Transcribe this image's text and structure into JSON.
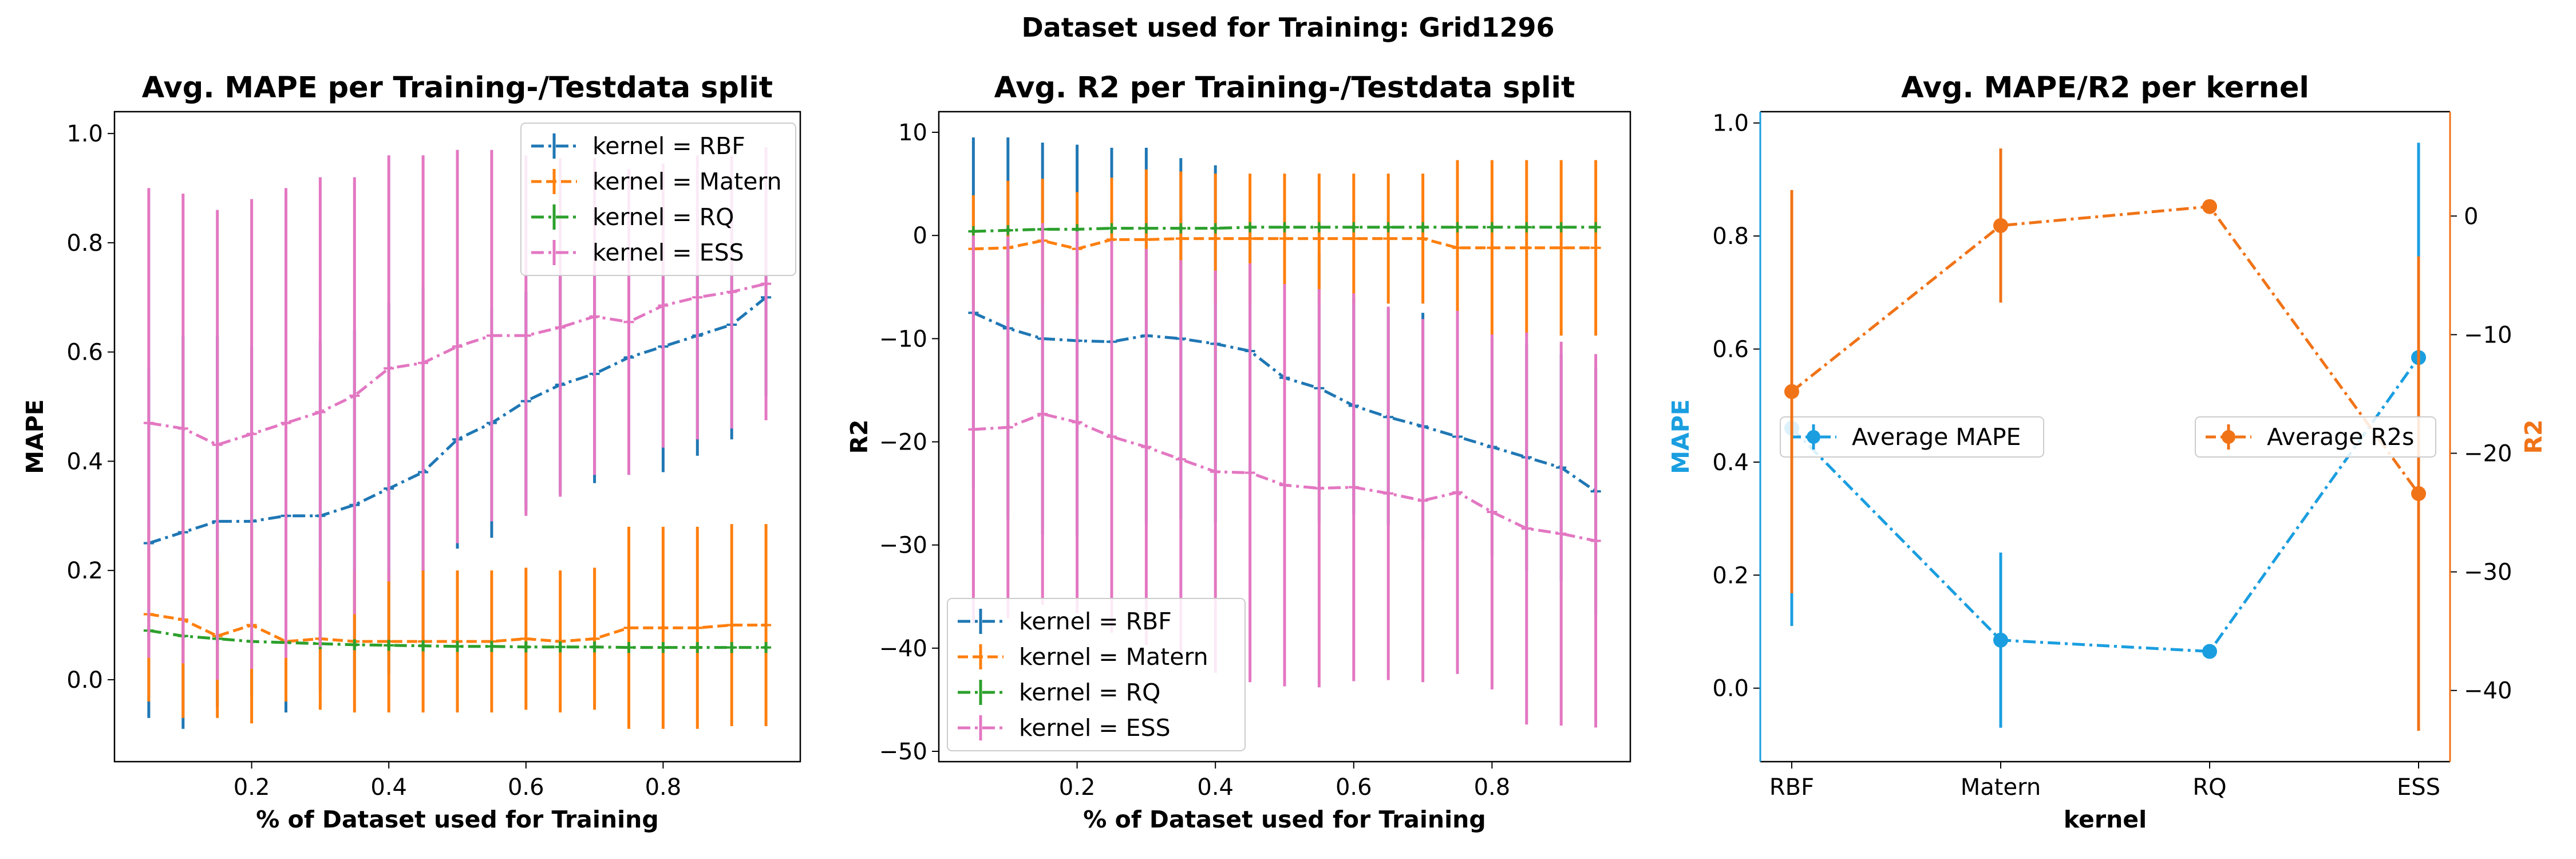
{
  "figure": {
    "suptitle": "Dataset used for Training: Grid1296"
  },
  "colors": {
    "RBF": "#1f77b4",
    "Matern": "#ff7f0e",
    "RQ": "#2ca02c",
    "ESS": "#e377c2",
    "mape_axis": "#1a9ee0",
    "r2_axis": "#f07317"
  },
  "chart_data": [
    {
      "type": "line",
      "title": "Avg. MAPE per Training-/Testdata split",
      "xlabel": "% of Dataset used for Training",
      "ylabel": "MAPE",
      "xlim": [
        0.0,
        1.0
      ],
      "ylim": [
        -0.15,
        1.04
      ],
      "xticks": [
        0.2,
        0.4,
        0.6,
        0.8
      ],
      "yticks": [
        0.0,
        0.2,
        0.4,
        0.6,
        0.8,
        1.0
      ],
      "legend_position": "top-right",
      "x": [
        0.05,
        0.1,
        0.15,
        0.2,
        0.25,
        0.3,
        0.35,
        0.4,
        0.45,
        0.5,
        0.55,
        0.6,
        0.65,
        0.7,
        0.75,
        0.8,
        0.85,
        0.9,
        0.95
      ],
      "series": [
        {
          "name": "kernel = RBF",
          "key": "RBF",
          "marker": "+",
          "dash": "dashdot",
          "values": [
            0.25,
            0.27,
            0.29,
            0.29,
            0.3,
            0.3,
            0.32,
            0.35,
            0.38,
            0.44,
            0.47,
            0.51,
            0.54,
            0.56,
            0.59,
            0.61,
            0.63,
            0.65,
            0.7
          ],
          "errors": [
            0.32,
            0.36,
            0.34,
            0.32,
            0.36,
            0.32,
            0.32,
            0.34,
            0.34,
            0.2,
            0.21,
            0.2,
            0.2,
            0.2,
            0.18,
            0.23,
            0.22,
            0.21,
            0.18
          ]
        },
        {
          "name": "kernel = Matern",
          "key": "Matern",
          "marker": "+",
          "dash": "dashed",
          "values": [
            0.12,
            0.11,
            0.08,
            0.1,
            0.07,
            0.075,
            0.07,
            0.07,
            0.07,
            0.07,
            0.07,
            0.075,
            0.07,
            0.075,
            0.095,
            0.095,
            0.095,
            0.1,
            0.1
          ],
          "errors": [
            0.16,
            0.18,
            0.15,
            0.18,
            0.11,
            0.13,
            0.13,
            0.13,
            0.13,
            0.13,
            0.13,
            0.13,
            0.13,
            0.13,
            0.185,
            0.185,
            0.185,
            0.185,
            0.185
          ]
        },
        {
          "name": "kernel = RQ",
          "key": "RQ",
          "marker": "+",
          "dash": "dashdot",
          "values": [
            0.09,
            0.08,
            0.075,
            0.07,
            0.068,
            0.066,
            0.064,
            0.063,
            0.062,
            0.061,
            0.061,
            0.06,
            0.06,
            0.06,
            0.059,
            0.059,
            0.059,
            0.059,
            0.059
          ],
          "errors": [
            0.01,
            0.01,
            0.01,
            0.01,
            0.01,
            0.01,
            0.01,
            0.01,
            0.01,
            0.01,
            0.01,
            0.01,
            0.01,
            0.01,
            0.01,
            0.01,
            0.01,
            0.01,
            0.01
          ]
        },
        {
          "name": "kernel = ESS",
          "key": "ESS",
          "marker": "+",
          "dash": "dashdot",
          "values": [
            0.47,
            0.46,
            0.43,
            0.45,
            0.47,
            0.49,
            0.52,
            0.57,
            0.58,
            0.61,
            0.63,
            0.63,
            0.645,
            0.665,
            0.655,
            0.685,
            0.7,
            0.71,
            0.725
          ],
          "errors": [
            0.43,
            0.43,
            0.43,
            0.43,
            0.43,
            0.43,
            0.4,
            0.39,
            0.38,
            0.36,
            0.34,
            0.33,
            0.31,
            0.29,
            0.28,
            0.26,
            0.26,
            0.25,
            0.25
          ]
        }
      ]
    },
    {
      "type": "line",
      "title": "Avg. R2 per Training-/Testdata split",
      "xlabel": "% of Dataset used for Training",
      "ylabel": "R2",
      "xlim": [
        0.0,
        1.0
      ],
      "ylim": [
        -51,
        12
      ],
      "xticks": [
        0.2,
        0.4,
        0.6,
        0.8
      ],
      "yticks": [
        -50,
        -40,
        -30,
        -20,
        -10,
        0,
        10
      ],
      "legend_position": "bottom-left",
      "x": [
        0.05,
        0.1,
        0.15,
        0.2,
        0.25,
        0.3,
        0.35,
        0.4,
        0.45,
        0.5,
        0.55,
        0.6,
        0.65,
        0.7,
        0.75,
        0.8,
        0.85,
        0.9,
        0.95
      ],
      "series": [
        {
          "name": "kernel = RBF",
          "key": "RBF",
          "marker": "+",
          "dash": "dashdot",
          "values": [
            -7.5,
            -9.0,
            -10.0,
            -10.2,
            -10.3,
            -9.7,
            -10.0,
            -10.5,
            -11.2,
            -13.8,
            -14.8,
            -16.5,
            -17.6,
            -18.5,
            -19.5,
            -20.5,
            -21.5,
            -22.5,
            -24.8
          ],
          "errors": [
            17.0,
            18.5,
            19.0,
            19.0,
            18.8,
            18.2,
            17.5,
            17.3,
            12.0,
            14.0,
            13.0,
            10.5,
            10.5,
            11.0,
            10.5,
            10.5,
            11.0,
            11.0,
            12.0
          ]
        },
        {
          "name": "kernel = Matern",
          "key": "Matern",
          "marker": "+",
          "dash": "dashed",
          "values": [
            -1.3,
            -1.2,
            -0.5,
            -1.3,
            -0.4,
            -0.4,
            -0.3,
            -0.3,
            -0.3,
            -0.3,
            -0.3,
            -0.3,
            -0.3,
            -0.3,
            -1.2,
            -1.2,
            -1.2,
            -1.2,
            -1.2
          ],
          "errors": [
            5.2,
            6.5,
            6.0,
            5.5,
            6.0,
            6.8,
            6.5,
            6.3,
            6.3,
            6.3,
            6.3,
            6.3,
            6.3,
            6.3,
            8.5,
            8.5,
            8.5,
            8.5,
            8.5
          ]
        },
        {
          "name": "kernel = RQ",
          "key": "RQ",
          "marker": "+",
          "dash": "dashdot",
          "values": [
            0.4,
            0.5,
            0.6,
            0.6,
            0.7,
            0.7,
            0.7,
            0.7,
            0.8,
            0.8,
            0.8,
            0.8,
            0.8,
            0.8,
            0.8,
            0.8,
            0.8,
            0.8,
            0.8
          ],
          "errors": [
            0.2,
            0.2,
            0.2,
            0.2,
            0.2,
            0.2,
            0.2,
            0.2,
            0.2,
            0.2,
            0.2,
            0.2,
            0.2,
            0.2,
            0.2,
            0.2,
            0.2,
            0.2,
            0.2
          ]
        },
        {
          "name": "kernel = ESS",
          "key": "ESS",
          "marker": "+",
          "dash": "dashdot",
          "values": [
            -18.8,
            -18.6,
            -17.3,
            -18.1,
            -19.5,
            -20.5,
            -21.7,
            -22.9,
            -23.0,
            -24.2,
            -24.5,
            -24.4,
            -25.0,
            -25.7,
            -24.9,
            -26.8,
            -28.4,
            -28.9,
            -29.6
          ],
          "errors": [
            18.8,
            18.5,
            18.5,
            18.5,
            19.0,
            19.2,
            19.3,
            19.5,
            20.3,
            19.5,
            19.3,
            18.8,
            18.1,
            17.6,
            17.6,
            17.2,
            19.0,
            18.6,
            18.1
          ]
        }
      ]
    },
    {
      "type": "line",
      "title": "Avg. MAPE/R2 per kernel",
      "xlabel": "kernel",
      "ylabel": "MAPE",
      "ylabel_right": "R2",
      "categories": [
        "RBF",
        "Matern",
        "RQ",
        "ESS"
      ],
      "ylim": [
        -0.13,
        1.02
      ],
      "ylim_right": [
        -46,
        8.8
      ],
      "yticks": [
        0.0,
        0.2,
        0.4,
        0.6,
        0.8,
        1.0
      ],
      "yticks_right": [
        -40,
        -30,
        -20,
        -10,
        0
      ],
      "series": [
        {
          "name": "Average MAPE",
          "key": "mape_axis",
          "axis": "left",
          "legend_position": "center-left",
          "values": [
            0.46,
            0.085,
            0.065,
            0.585
          ],
          "errors": [
            0.35,
            0.155,
            0.0,
            0.38
          ]
        },
        {
          "name": "Average R2s",
          "key": "r2_axis",
          "axis": "right",
          "legend_position": "center-right",
          "values": [
            -14.8,
            -0.8,
            0.8,
            -23.4
          ],
          "errors": [
            17.0,
            6.5,
            0.0,
            20.0
          ]
        }
      ]
    }
  ]
}
